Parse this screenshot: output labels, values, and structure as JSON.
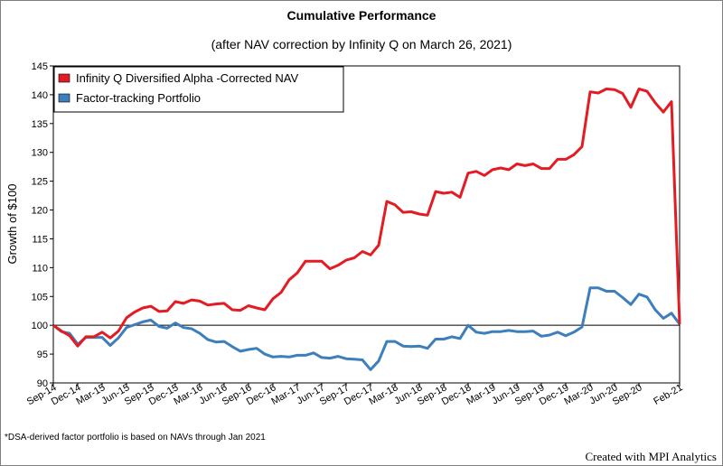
{
  "chart_data": {
    "type": "line",
    "title": "Cumulative Performance",
    "subtitle": "(after NAV correction by Infinity Q on March 26, 2021)",
    "ylabel": "Growth of $100",
    "xlabel": "",
    "ylim": [
      90,
      145
    ],
    "yticks": [
      90,
      95,
      100,
      105,
      110,
      115,
      120,
      125,
      130,
      135,
      140,
      145
    ],
    "reference_line": 100,
    "x_tick_labels": [
      "Sep-14",
      "Dec-14",
      "Mar-15",
      "Jun-15",
      "Sep-15",
      "Dec-15",
      "Mar-16",
      "Jun-16",
      "Sep-16",
      "Dec-16",
      "Mar-17",
      "Jun-17",
      "Sep-17",
      "Dec-17",
      "Mar-18",
      "Jun-18",
      "Sep-18",
      "Dec-18",
      "Mar-19",
      "Jun-19",
      "Sep-19",
      "Dec-19",
      "Mar-20",
      "Jun-20",
      "Sep-20",
      "Feb-21"
    ],
    "x_months_index": [
      0,
      3,
      6,
      9,
      12,
      15,
      18,
      21,
      24,
      27,
      30,
      33,
      36,
      39,
      42,
      45,
      48,
      51,
      54,
      57,
      60,
      63,
      66,
      69,
      72,
      77
    ],
    "x_months_total": 77,
    "legend_position": "top-left",
    "series": [
      {
        "name": "Infinity Q Diversified Alpha -Corrected NAV",
        "color": "#e31c23",
        "values": [
          100,
          99,
          98.2,
          96.4,
          98,
          98,
          98.8,
          97.8,
          99,
          101.3,
          102.3,
          103,
          103.3,
          102.4,
          102.5,
          104.1,
          103.8,
          104.4,
          104.2,
          103.5,
          103.7,
          103.8,
          102.7,
          102.6,
          103.4,
          103,
          102.7,
          104.6,
          105.7,
          107.9,
          109.1,
          111.1,
          111.1,
          111.1,
          109.8,
          110.4,
          111.3,
          111.7,
          112.8,
          112.2,
          113.9,
          121.5,
          120.9,
          119.6,
          119.7,
          119.3,
          119.1,
          123.2,
          122.9,
          123.1,
          122.2,
          126.4,
          126.7,
          126,
          127,
          127.3,
          127,
          128,
          127.7,
          128,
          127.2,
          127.2,
          128.8,
          128.8,
          129.6,
          131,
          140.5,
          140.3,
          141,
          140.9,
          140.2,
          137.8,
          141,
          140.6,
          138.6,
          137,
          138.8,
          100.2
        ]
      },
      {
        "name": "Factor-tracking Portfolio",
        "color": "#3d7ebd",
        "values": [
          100,
          98.9,
          98.6,
          96.7,
          97.9,
          97.9,
          97.9,
          96.5,
          97.8,
          99.6,
          100.1,
          100.6,
          100.9,
          99.8,
          99.5,
          100.4,
          99.6,
          99.4,
          98.6,
          97.5,
          97.1,
          97.2,
          96.3,
          95.5,
          95.8,
          96,
          95,
          94.5,
          94.6,
          94.5,
          94.8,
          94.8,
          95.2,
          94.4,
          94.3,
          94.6,
          94.2,
          94.1,
          94,
          92.3,
          93.8,
          97.2,
          97.2,
          96.4,
          96.3,
          96.4,
          96,
          97.6,
          97.6,
          98,
          97.7,
          100,
          98.8,
          98.6,
          98.9,
          98.9,
          99.1,
          98.9,
          98.9,
          99,
          98.1,
          98.3,
          98.8,
          98.2,
          98.8,
          99.7,
          106.5,
          106.5,
          105.9,
          105.9,
          104.8,
          103.6,
          105.4,
          104.9,
          102.7,
          101.2,
          102.1,
          100.2
        ]
      }
    ]
  },
  "footnote": "*DSA-derived factor portfolio is based on NAVs through Jan 2021",
  "credit": "Created with MPI Analytics"
}
